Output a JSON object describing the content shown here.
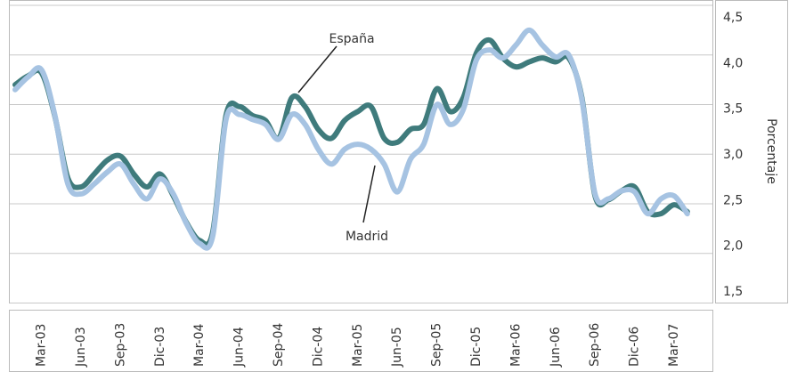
{
  "chart_data": {
    "type": "line",
    "y_label": "Porcentaje",
    "categories": [
      null,
      null,
      "Mar-03",
      null,
      null,
      "Jun-03",
      null,
      null,
      "Sep-03",
      null,
      null,
      "Dic-03",
      null,
      null,
      "Mar-04",
      null,
      null,
      "Jun-04",
      null,
      null,
      "Sep-04",
      null,
      null,
      "Dic-04",
      null,
      null,
      "Mar-05",
      null,
      null,
      "Jun-05",
      null,
      null,
      "Sep-05",
      null,
      null,
      "Dic-05",
      null,
      null,
      "Mar-06",
      null,
      null,
      "Jun-06",
      null,
      null,
      "Sep-06",
      null,
      null,
      "Dic-06",
      null,
      null,
      "Mar-07",
      null
    ],
    "series": [
      {
        "name": "España",
        "color": "#3f7b7c",
        "values": [
          3.7,
          3.79,
          3.82,
          3.39,
          2.76,
          2.67,
          2.8,
          2.94,
          2.98,
          2.8,
          2.67,
          2.8,
          2.58,
          2.31,
          2.13,
          2.22,
          3.39,
          3.48,
          3.39,
          3.34,
          3.16,
          3.57,
          3.48,
          3.25,
          3.16,
          3.34,
          3.43,
          3.48,
          3.16,
          3.12,
          3.25,
          3.3,
          3.66,
          3.43,
          3.57,
          4.02,
          4.15,
          3.97,
          3.88,
          3.93,
          3.97,
          3.93,
          3.97,
          3.57,
          2.58,
          2.54,
          2.63,
          2.67,
          2.42,
          2.4,
          2.49,
          2.42
        ]
      },
      {
        "name": "Madrid",
        "color": "#a6c3e2",
        "values": [
          3.65,
          3.78,
          3.85,
          3.4,
          2.7,
          2.6,
          2.7,
          2.82,
          2.9,
          2.7,
          2.55,
          2.75,
          2.6,
          2.3,
          2.1,
          2.18,
          3.35,
          3.4,
          3.35,
          3.3,
          3.15,
          3.4,
          3.3,
          3.05,
          2.9,
          3.05,
          3.1,
          3.05,
          2.9,
          2.62,
          2.95,
          3.1,
          3.5,
          3.3,
          3.45,
          3.95,
          4.05,
          3.97,
          4.1,
          4.25,
          4.1,
          3.98,
          4.0,
          3.55,
          2.6,
          2.55,
          2.63,
          2.62,
          2.4,
          2.55,
          2.58,
          2.4
        ]
      }
    ],
    "ylim": [
      1.5,
      4.5
    ],
    "yticks": [
      {
        "value": 1.5,
        "label": "1,5"
      },
      {
        "value": 2.0,
        "label": "2,0"
      },
      {
        "value": 2.5,
        "label": "2,5"
      },
      {
        "value": 3.0,
        "label": "3,0"
      },
      {
        "value": 3.5,
        "label": "3,5"
      },
      {
        "value": 4.0,
        "label": "4,0"
      },
      {
        "value": 4.5,
        "label": "4,5"
      }
    ],
    "grid": true
  }
}
